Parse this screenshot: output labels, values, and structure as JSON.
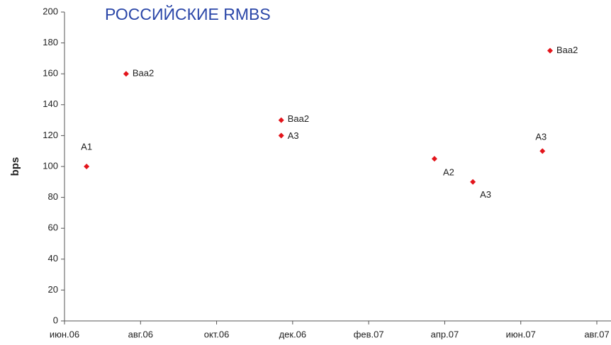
{
  "chart_data": {
    "type": "scatter",
    "title": "РОССИЙСКИЕ RMBS",
    "y_label": "bps",
    "x": [
      0.58,
      1.62,
      5.7,
      5.7,
      9.73,
      10.74,
      12.57,
      12.77
    ],
    "values": [
      100,
      160,
      130,
      120,
      105,
      90,
      110,
      175
    ],
    "labels": [
      "A1",
      "Baa2",
      "Baa2",
      "A3",
      "A2",
      "A3",
      "A3",
      "Baa2"
    ],
    "color": "#e3141b",
    "xlim": [
      0,
      14
    ],
    "xticks": [
      {
        "value": 0,
        "label": "июн.06"
      },
      {
        "value": 2,
        "label": "авг.06"
      },
      {
        "value": 4,
        "label": "окт.06"
      },
      {
        "value": 6,
        "label": "дек.06"
      },
      {
        "value": 8,
        "label": "фев.07"
      },
      {
        "value": 10,
        "label": "апр.07"
      },
      {
        "value": 12,
        "label": "июн.07"
      },
      {
        "value": 14,
        "label": "авг.07"
      }
    ],
    "ylim": [
      0,
      200
    ],
    "yticks": [
      0,
      20,
      40,
      60,
      80,
      100,
      120,
      140,
      160,
      180,
      200
    ]
  }
}
